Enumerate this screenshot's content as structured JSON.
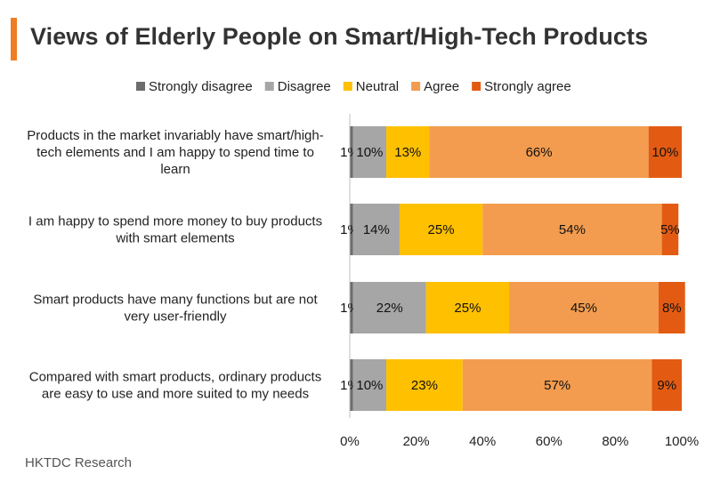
{
  "chart_data": {
    "type": "bar",
    "orientation": "horizontal",
    "stacked": true,
    "title": "Views of Elderly People on Smart/High-Tech Products",
    "categories": [
      "Products in the market invariably have smart/high-tech elements and I am happy to spend time to learn",
      "I am happy to spend more money to buy products with smart elements",
      "Smart products have many functions but are not very user-friendly",
      "Compared with smart products, ordinary products are easy to use and more suited to my needs"
    ],
    "category_lines": [
      [
        "Products in the market invariably have smart/high-",
        "tech elements and I am happy to spend time to",
        "learn"
      ],
      [
        "I am happy to spend more money to buy products",
        "with smart elements"
      ],
      [
        "Smart products have many functions but are not",
        "very user-friendly"
      ],
      [
        "Compared with smart products, ordinary products",
        "are easy to use and more suited to my needs"
      ]
    ],
    "series": [
      {
        "name": "Strongly disagree",
        "color": "#6d6d6d",
        "values": [
          1,
          1,
          1,
          1
        ]
      },
      {
        "name": "Disagree",
        "color": "#a6a6a6",
        "values": [
          10,
          14,
          22,
          10
        ]
      },
      {
        "name": "Neutral",
        "color": "#ffc000",
        "values": [
          13,
          25,
          25,
          23
        ]
      },
      {
        "name": "Agree",
        "color": "#f39c4f",
        "values": [
          66,
          54,
          45,
          57
        ]
      },
      {
        "name": "Strongly agree",
        "color": "#e35b13",
        "values": [
          10,
          5,
          8,
          9
        ]
      }
    ],
    "data_labels": [
      [
        "1%",
        "10%",
        "13%",
        "66%",
        "10%"
      ],
      [
        "1%",
        "14%",
        "25%",
        "54%",
        "5%"
      ],
      [
        "1%",
        "22%",
        "25%",
        "45%",
        "8%"
      ],
      [
        "1%",
        "10%",
        "23%",
        "57%",
        "9%"
      ]
    ],
    "x_ticks": [
      "0%",
      "20%",
      "40%",
      "60%",
      "80%",
      "100%"
    ],
    "xlim": [
      0,
      100
    ],
    "legend_position": "top",
    "grid": false
  },
  "source": "HKTDC Research"
}
